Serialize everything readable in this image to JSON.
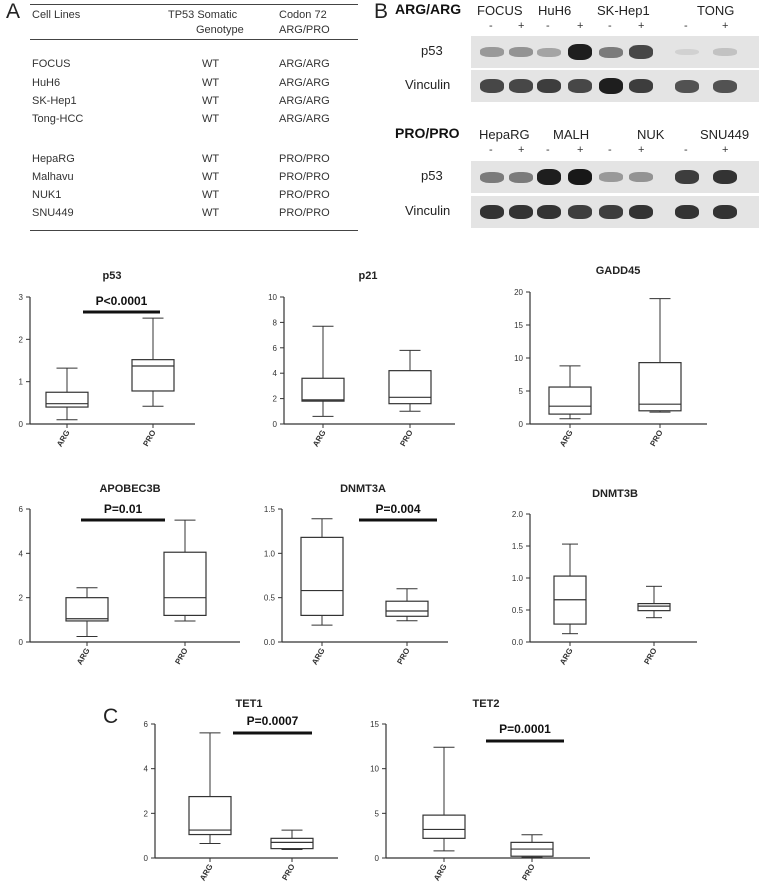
{
  "panel_labels": {
    "a": "A",
    "b": "B",
    "c": "C"
  },
  "tableA": {
    "headers": {
      "col1": "Cell Lines",
      "col2_line1": "TP53 Somatic",
      "col2_line2": "Genotype",
      "col3_line1": "Codon 72",
      "col3_line2": "ARG/PRO"
    },
    "rows": [
      {
        "cell_line": "FOCUS",
        "genotype": "WT",
        "codon72": "ARG/ARG"
      },
      {
        "cell_line": "HuH6",
        "genotype": "WT",
        "codon72": "ARG/ARG"
      },
      {
        "cell_line": "SK-Hep1",
        "genotype": "WT",
        "codon72": "ARG/ARG"
      },
      {
        "cell_line": "Tong-HCC",
        "genotype": "WT",
        "codon72": "ARG/ARG"
      },
      {
        "cell_line": "HepaRG",
        "genotype": "WT",
        "codon72": "PRO/PRO"
      },
      {
        "cell_line": "Malhavu",
        "genotype": "WT",
        "codon72": "PRO/PRO"
      },
      {
        "cell_line": "NUK1",
        "genotype": "WT",
        "codon72": "PRO/PRO"
      },
      {
        "cell_line": "SNU449",
        "genotype": "WT",
        "codon72": "PRO/PRO"
      }
    ]
  },
  "blotB": {
    "groups": [
      {
        "label": "ARG/ARG",
        "cell_lines": [
          "FOCUS",
          "HuH6",
          "SK-Hep1",
          "TONG"
        ],
        "p53_intensity": [
          0.35,
          0.38,
          0.3,
          0.95,
          0.5,
          0.75,
          0.08,
          0.15
        ],
        "vinculin_intensity": [
          0.75,
          0.75,
          0.8,
          0.75,
          0.95,
          0.8,
          0.7,
          0.7
        ]
      },
      {
        "label": "PRO/PRO",
        "cell_lines": [
          "HepaRG",
          "MALH",
          "NUK",
          "SNU449"
        ],
        "p53_intensity": [
          0.5,
          0.5,
          0.95,
          0.98,
          0.35,
          0.38,
          0.8,
          0.85
        ],
        "vinculin_intensity": [
          0.85,
          0.85,
          0.85,
          0.8,
          0.8,
          0.85,
          0.85,
          0.85
        ]
      }
    ],
    "row_labels": {
      "p53": "p53",
      "vinculin": "Vinculin"
    },
    "treatment_signs": [
      "-",
      "+"
    ]
  },
  "chart_data": [
    {
      "type": "boxplot",
      "title": "p53",
      "categories": [
        "ARG",
        "PRO"
      ],
      "ylim": [
        0,
        3
      ],
      "yticks": [
        0,
        1,
        2,
        3
      ],
      "boxes": [
        {
          "min": 0.1,
          "q1": 0.4,
          "median": 0.48,
          "q3": 0.75,
          "max": 1.32
        },
        {
          "min": 0.42,
          "q1": 0.78,
          "median": 1.37,
          "q3": 1.52,
          "max": 2.5
        }
      ],
      "annotation": "P<0.0001"
    },
    {
      "type": "boxplot",
      "title": "p21",
      "categories": [
        "ARG",
        "PRO"
      ],
      "ylim": [
        0,
        10
      ],
      "yticks": [
        0,
        2,
        4,
        6,
        8,
        10
      ],
      "boxes": [
        {
          "min": 0.6,
          "q1": 1.8,
          "median": 1.9,
          "q3": 3.6,
          "max": 7.7
        },
        {
          "min": 1.0,
          "q1": 1.6,
          "median": 2.1,
          "q3": 4.2,
          "max": 5.8
        }
      ],
      "annotation": ""
    },
    {
      "type": "boxplot",
      "title": "GADD45",
      "categories": [
        "ARG",
        "PRO"
      ],
      "ylim": [
        0,
        20
      ],
      "yticks": [
        0,
        5,
        10,
        15,
        20
      ],
      "boxes": [
        {
          "min": 0.8,
          "q1": 1.5,
          "median": 2.7,
          "q3": 5.6,
          "max": 8.8
        },
        {
          "min": 1.8,
          "q1": 2.0,
          "median": 3.0,
          "q3": 9.3,
          "max": 19.0
        }
      ],
      "annotation": ""
    },
    {
      "type": "boxplot",
      "title": "APOBEC3B",
      "categories": [
        "ARG",
        "PRO"
      ],
      "ylim": [
        0,
        6
      ],
      "yticks": [
        0,
        2,
        4,
        6
      ],
      "boxes": [
        {
          "min": 0.25,
          "q1": 0.95,
          "median": 1.05,
          "q3": 2.0,
          "max": 2.45
        },
        {
          "min": 0.95,
          "q1": 1.2,
          "median": 2.0,
          "q3": 4.05,
          "max": 5.5
        }
      ],
      "annotation": "P=0.01"
    },
    {
      "type": "boxplot",
      "title": "DNMT3A",
      "categories": [
        "ARG",
        "PRO"
      ],
      "ylim": [
        0,
        1.5
      ],
      "yticks": [
        0,
        0.5,
        1.0,
        1.5
      ],
      "ytick_labels": [
        "0.0",
        "0.5",
        "1.0",
        "1.5"
      ],
      "boxes": [
        {
          "min": 0.19,
          "q1": 0.3,
          "median": 0.58,
          "q3": 1.18,
          "max": 1.39
        },
        {
          "min": 0.24,
          "q1": 0.29,
          "median": 0.35,
          "q3": 0.46,
          "max": 0.6
        }
      ],
      "annotation": "P=0.004"
    },
    {
      "type": "boxplot",
      "title": "DNMT3B",
      "categories": [
        "ARG",
        "PRO"
      ],
      "ylim": [
        0,
        2.0
      ],
      "yticks": [
        0,
        0.5,
        1.0,
        1.5,
        2.0
      ],
      "ytick_labels": [
        "0.0",
        "0.5",
        "1.0",
        "1.5",
        "2.0"
      ],
      "boxes": [
        {
          "min": 0.13,
          "q1": 0.28,
          "median": 0.66,
          "q3": 1.03,
          "max": 1.53
        },
        {
          "min": 0.38,
          "q1": 0.49,
          "median": 0.56,
          "q3": 0.6,
          "max": 0.87
        }
      ],
      "annotation": ""
    },
    {
      "type": "boxplot",
      "title": "TET1",
      "categories": [
        "ARG",
        "PRO"
      ],
      "ylim": [
        0,
        6
      ],
      "yticks": [
        0,
        2,
        4,
        6
      ],
      "boxes": [
        {
          "min": 0.65,
          "q1": 1.05,
          "median": 1.25,
          "q3": 2.75,
          "max": 5.6
        },
        {
          "min": 0.38,
          "q1": 0.42,
          "median": 0.7,
          "q3": 0.88,
          "max": 1.25
        }
      ],
      "annotation": "P=0.0007"
    },
    {
      "type": "boxplot",
      "title": "TET2",
      "categories": [
        "ARG",
        "PRO"
      ],
      "ylim": [
        0,
        15
      ],
      "yticks": [
        0,
        5,
        10,
        15
      ],
      "boxes": [
        {
          "min": 0.8,
          "q1": 2.2,
          "median": 3.2,
          "q3": 4.8,
          "max": 12.4
        },
        {
          "min": 0.1,
          "q1": 0.2,
          "median": 1.0,
          "q3": 1.75,
          "max": 2.6
        }
      ],
      "annotation": "P=0.0001"
    }
  ]
}
